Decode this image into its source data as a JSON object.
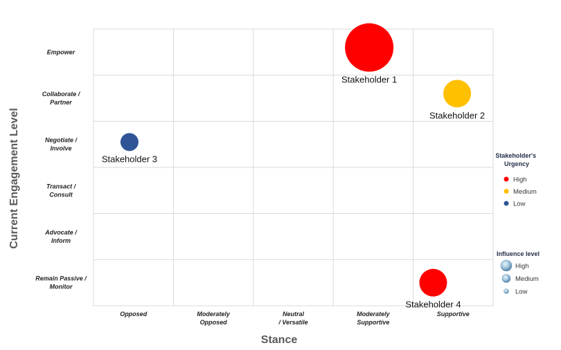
{
  "chart_data": {
    "type": "scatter",
    "title": "",
    "xlabel": "Stance",
    "ylabel": "Current Engagement Level",
    "x_categories": [
      "Opposed",
      "Moderately Opposed",
      "Neutral / Versatile",
      "Moderately Supportive",
      "Supportive"
    ],
    "y_categories": [
      "Remain Passive / Monitor",
      "Advocate / Inform",
      "Transact / Consult",
      "Negotiate / Involve",
      "Collaborate / Partner",
      "Empower"
    ],
    "grid": true,
    "points": [
      {
        "label": "Stakeholder 1",
        "x": 4.45,
        "y": 6.6,
        "urgency": "High",
        "influence": "High"
      },
      {
        "label": "Stakeholder 2",
        "x": 5.55,
        "y": 5.6,
        "urgency": "Medium",
        "influence": "Medium"
      },
      {
        "label": "Stakeholder 3",
        "x": 1.45,
        "y": 4.55,
        "urgency": "Low",
        "influence": "Low"
      },
      {
        "label": "Stakeholder 4",
        "x": 5.25,
        "y": 1.5,
        "urgency": "High",
        "influence": "Medium"
      }
    ],
    "urgency_colors": {
      "High": "#ff0000",
      "Medium": "#ffc000",
      "Low": "#2f5597"
    },
    "influence_levels": [
      "High",
      "Medium",
      "Low"
    ],
    "legend": {
      "urgency_title": "Stakeholder's Urgency",
      "urgency_items": [
        "High",
        "Medium",
        "Low"
      ],
      "influence_title": "Influence level",
      "influence_items": [
        "High",
        "Medium",
        "Low"
      ],
      "placement": "right"
    }
  }
}
